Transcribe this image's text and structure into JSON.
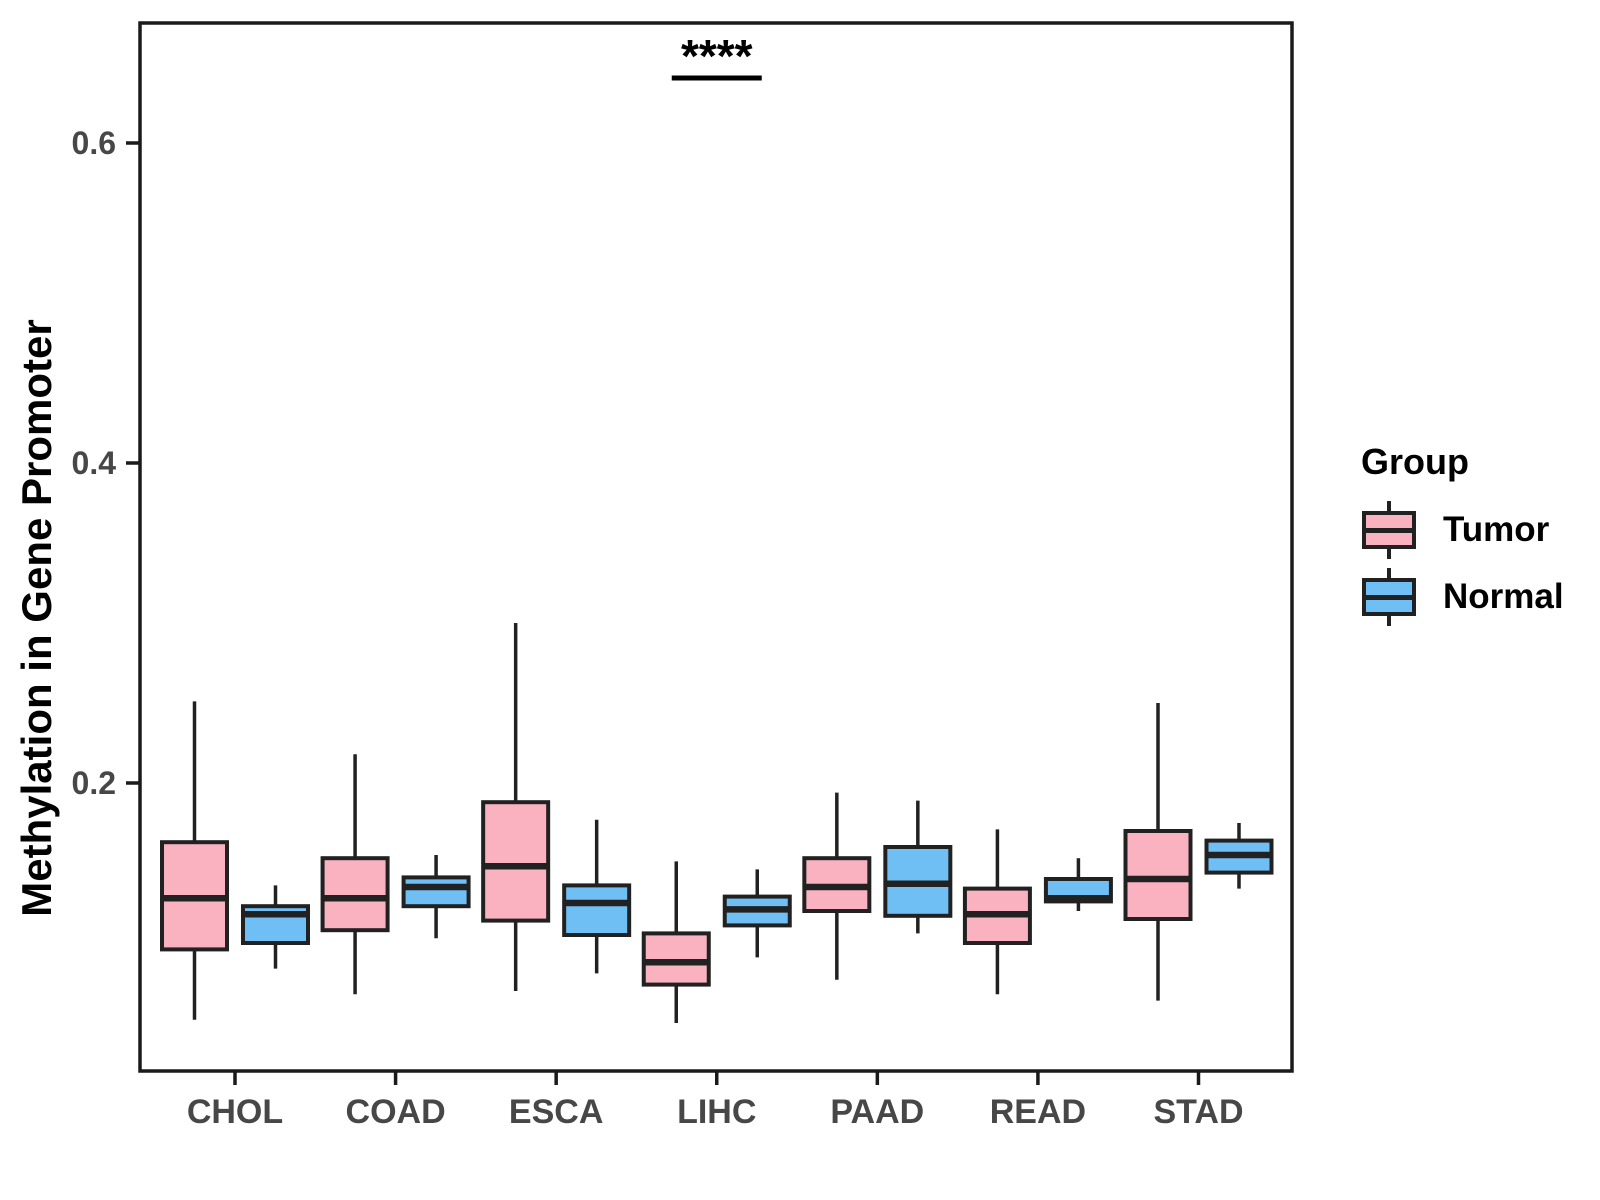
{
  "page": {
    "background": "#FFFFFF"
  },
  "chart_data": {
    "type": "boxplot",
    "title": "",
    "xlabel": "",
    "ylabel": "Methylation in Gene Promoter",
    "categories": [
      "CHOL",
      "COAD",
      "ESCA",
      "LIHC",
      "PAAD",
      "READ",
      "STAD"
    ],
    "y_ticks": [
      "0.2",
      "0.4",
      "0.6"
    ],
    "ylim": [
      0.02,
      0.675
    ],
    "grid": false,
    "panel_border": true,
    "colors": {
      "tumor_fill": "#FAB2C1",
      "normal_fill": "#6FBFF5",
      "box_stroke": "#212121",
      "axis_text": "#474747",
      "panel_stroke": "#1A1A1A"
    },
    "legend": {
      "title": "Group",
      "position": "right",
      "entries": [
        {
          "label": "Tumor",
          "color": "#FAB2C1"
        },
        {
          "label": "Normal",
          "color": "#6FBFF5"
        }
      ]
    },
    "annotation": {
      "text": "****",
      "category": "LIHC",
      "underlined": true,
      "y_value": 0.645
    },
    "series": [
      {
        "name": "Tumor",
        "color": "#FAB2C1",
        "stats": [
          {
            "low": 0.052,
            "q1": 0.096,
            "med": 0.128,
            "q3": 0.163,
            "high": 0.251
          },
          {
            "low": 0.068,
            "q1": 0.108,
            "med": 0.128,
            "q3": 0.153,
            "high": 0.218
          },
          {
            "low": 0.07,
            "q1": 0.114,
            "med": 0.148,
            "q3": 0.188,
            "high": 0.3
          },
          {
            "low": 0.05,
            "q1": 0.074,
            "med": 0.088,
            "q3": 0.106,
            "high": 0.151
          },
          {
            "low": 0.077,
            "q1": 0.12,
            "med": 0.135,
            "q3": 0.153,
            "high": 0.194
          },
          {
            "low": 0.068,
            "q1": 0.1,
            "med": 0.118,
            "q3": 0.134,
            "high": 0.171
          },
          {
            "low": 0.064,
            "q1": 0.115,
            "med": 0.14,
            "q3": 0.17,
            "high": 0.25
          }
        ]
      },
      {
        "name": "Normal",
        "color": "#6FBFF5",
        "stats": [
          {
            "low": 0.084,
            "q1": 0.1,
            "med": 0.118,
            "q3": 0.123,
            "high": 0.136
          },
          {
            "low": 0.103,
            "q1": 0.123,
            "med": 0.135,
            "q3": 0.141,
            "high": 0.155
          },
          {
            "low": 0.081,
            "q1": 0.105,
            "med": 0.125,
            "q3": 0.136,
            "high": 0.177
          },
          {
            "low": 0.091,
            "q1": 0.111,
            "med": 0.121,
            "q3": 0.129,
            "high": 0.146
          },
          {
            "low": 0.106,
            "q1": 0.117,
            "med": 0.137,
            "q3": 0.16,
            "high": 0.189
          },
          {
            "low": 0.12,
            "q1": 0.126,
            "med": 0.128,
            "q3": 0.14,
            "high": 0.153
          },
          {
            "low": 0.134,
            "q1": 0.144,
            "med": 0.155,
            "q3": 0.164,
            "high": 0.175
          }
        ]
      }
    ]
  }
}
